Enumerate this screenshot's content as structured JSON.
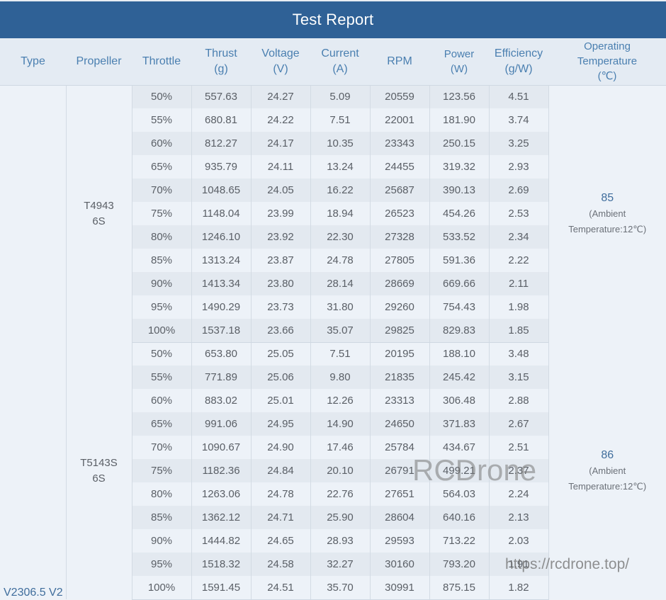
{
  "title": "Test Report",
  "headers": {
    "type": "Type",
    "propeller": "Propeller",
    "throttle": "Throttle",
    "thrust": [
      "Thrust",
      "(g)"
    ],
    "voltage": [
      "Voltage",
      "(V)"
    ],
    "current": [
      "Current",
      "(A)"
    ],
    "rpm": "RPM",
    "power": [
      "Power",
      "(W)"
    ],
    "efficiency": [
      "Efficiency",
      "(g/W)"
    ],
    "temperature": [
      "Operating",
      "Temperature",
      "(℃)"
    ]
  },
  "motor_type": "V2306.5 V2",
  "groups": [
    {
      "propeller": [
        "T4943",
        "6S"
      ],
      "temperature": "85",
      "temperature_note": [
        "(Ambient",
        "Temperature:12℃)"
      ],
      "rows": [
        {
          "throttle": "50%",
          "thrust": "557.63",
          "voltage": "24.27",
          "current": "5.09",
          "rpm": "20559",
          "power": "123.56",
          "efficiency": "4.51"
        },
        {
          "throttle": "55%",
          "thrust": "680.81",
          "voltage": "24.22",
          "current": "7.51",
          "rpm": "22001",
          "power": "181.90",
          "efficiency": "3.74"
        },
        {
          "throttle": "60%",
          "thrust": "812.27",
          "voltage": "24.17",
          "current": "10.35",
          "rpm": "23343",
          "power": "250.15",
          "efficiency": "3.25"
        },
        {
          "throttle": "65%",
          "thrust": "935.79",
          "voltage": "24.11",
          "current": "13.24",
          "rpm": "24455",
          "power": "319.32",
          "efficiency": "2.93"
        },
        {
          "throttle": "70%",
          "thrust": "1048.65",
          "voltage": "24.05",
          "current": "16.22",
          "rpm": "25687",
          "power": "390.13",
          "efficiency": "2.69"
        },
        {
          "throttle": "75%",
          "thrust": "1148.04",
          "voltage": "23.99",
          "current": "18.94",
          "rpm": "26523",
          "power": "454.26",
          "efficiency": "2.53"
        },
        {
          "throttle": "80%",
          "thrust": "1246.10",
          "voltage": "23.92",
          "current": "22.30",
          "rpm": "27328",
          "power": "533.52",
          "efficiency": "2.34"
        },
        {
          "throttle": "85%",
          "thrust": "1313.24",
          "voltage": "23.87",
          "current": "24.78",
          "rpm": "27805",
          "power": "591.36",
          "efficiency": "2.22"
        },
        {
          "throttle": "90%",
          "thrust": "1413.34",
          "voltage": "23.80",
          "current": "28.14",
          "rpm": "28669",
          "power": "669.66",
          "efficiency": "2.11"
        },
        {
          "throttle": "95%",
          "thrust": "1490.29",
          "voltage": "23.73",
          "current": "31.80",
          "rpm": "29260",
          "power": "754.43",
          "efficiency": "1.98"
        },
        {
          "throttle": "100%",
          "thrust": "1537.18",
          "voltage": "23.66",
          "current": "35.07",
          "rpm": "29825",
          "power": "829.83",
          "efficiency": "1.85"
        }
      ]
    },
    {
      "propeller": [
        "T5143S",
        "6S"
      ],
      "temperature": "86",
      "temperature_note": [
        "(Ambient",
        "Temperature:12℃)"
      ],
      "rows": [
        {
          "throttle": "50%",
          "thrust": "653.80",
          "voltage": "25.05",
          "current": "7.51",
          "rpm": "20195",
          "power": "188.10",
          "efficiency": "3.48"
        },
        {
          "throttle": "55%",
          "thrust": "771.89",
          "voltage": "25.06",
          "current": "9.80",
          "rpm": "21835",
          "power": "245.42",
          "efficiency": "3.15"
        },
        {
          "throttle": "60%",
          "thrust": "883.02",
          "voltage": "25.01",
          "current": "12.26",
          "rpm": "23313",
          "power": "306.48",
          "efficiency": "2.88"
        },
        {
          "throttle": "65%",
          "thrust": "991.06",
          "voltage": "24.95",
          "current": "14.90",
          "rpm": "24650",
          "power": "371.83",
          "efficiency": "2.67"
        },
        {
          "throttle": "70%",
          "thrust": "1090.67",
          "voltage": "24.90",
          "current": "17.46",
          "rpm": "25784",
          "power": "434.67",
          "efficiency": "2.51"
        },
        {
          "throttle": "75%",
          "thrust": "1182.36",
          "voltage": "24.84",
          "current": "20.10",
          "rpm": "26791",
          "power": "499.21",
          "efficiency": "2.37"
        },
        {
          "throttle": "80%",
          "thrust": "1263.06",
          "voltage": "24.78",
          "current": "22.76",
          "rpm": "27651",
          "power": "564.03",
          "efficiency": "2.24"
        },
        {
          "throttle": "85%",
          "thrust": "1362.12",
          "voltage": "24.71",
          "current": "25.90",
          "rpm": "28604",
          "power": "640.16",
          "efficiency": "2.13"
        },
        {
          "throttle": "90%",
          "thrust": "1444.82",
          "voltage": "24.65",
          "current": "28.93",
          "rpm": "29593",
          "power": "713.22",
          "efficiency": "2.03"
        },
        {
          "throttle": "95%",
          "thrust": "1518.32",
          "voltage": "24.58",
          "current": "32.27",
          "rpm": "30160",
          "power": "793.20",
          "efficiency": "1.91"
        },
        {
          "throttle": "100%",
          "thrust": "1591.45",
          "voltage": "24.51",
          "current": "35.70",
          "rpm": "30991",
          "power": "875.15",
          "efficiency": "1.82"
        }
      ]
    }
  ],
  "watermark": {
    "brand": "RCDrone",
    "url": "https://rcdrone.top/"
  }
}
